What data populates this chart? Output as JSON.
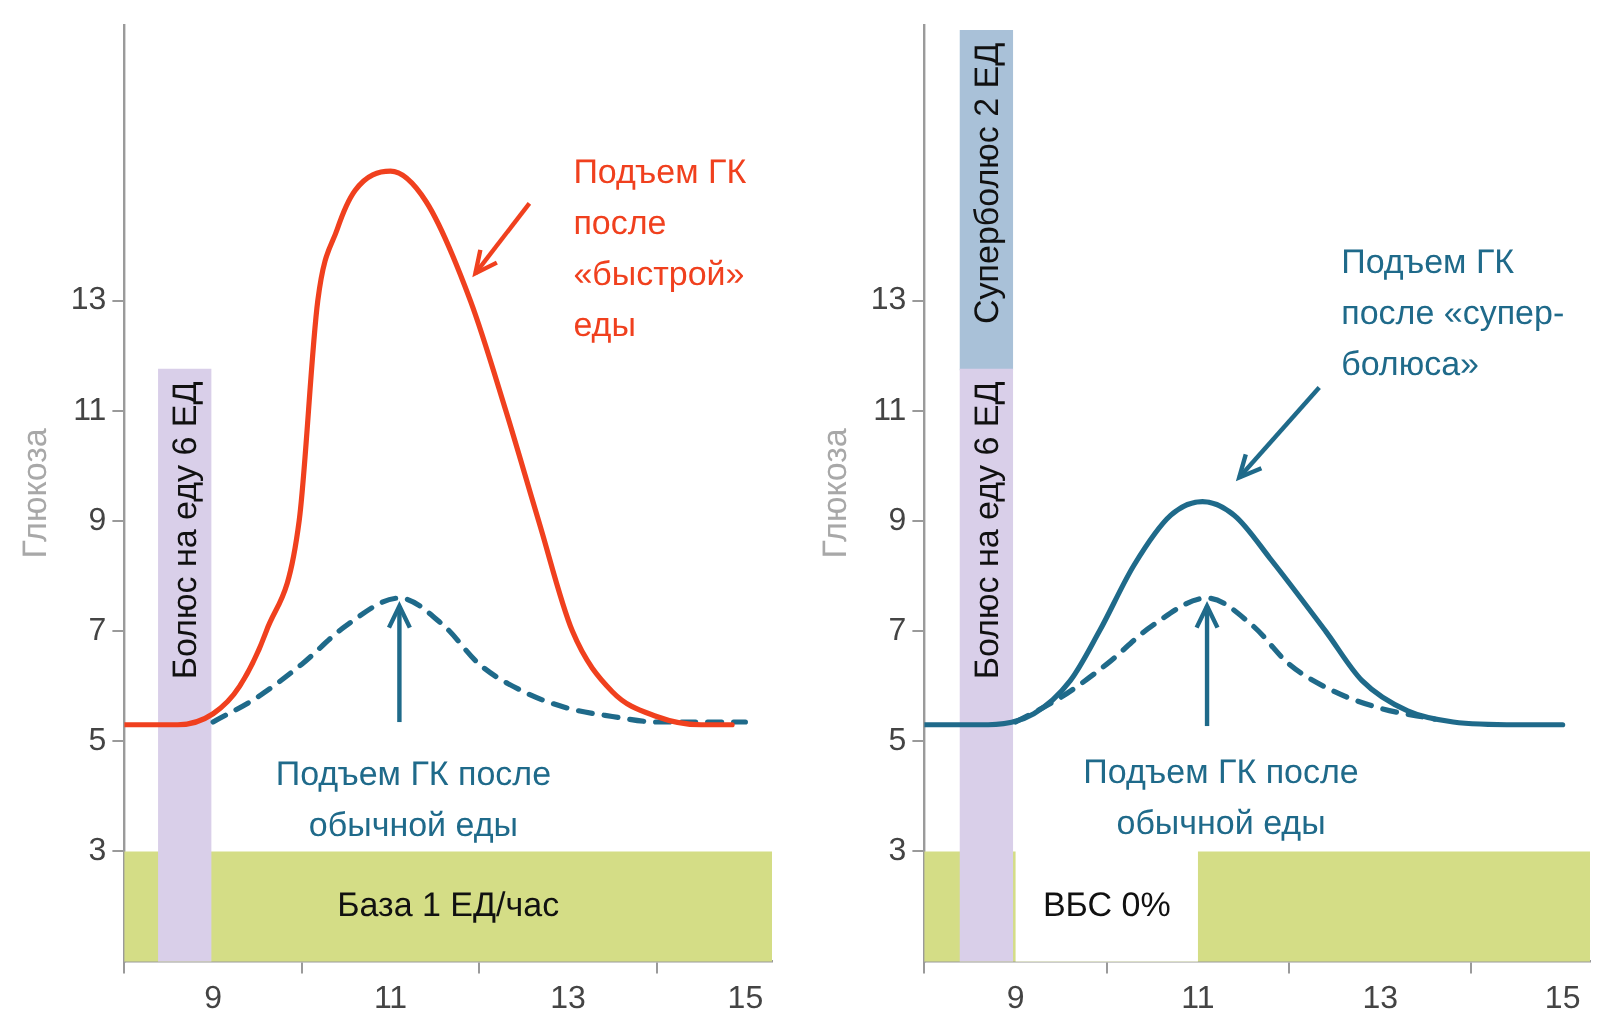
{
  "chart_data": [
    {
      "type": "line",
      "xlim": [
        8,
        15.3
      ],
      "ylim": [
        1,
        18
      ],
      "xticks": [
        9,
        11,
        13,
        15
      ],
      "yticks": [
        3,
        5,
        7,
        9,
        11,
        13
      ],
      "ylabel": "Глюкоза",
      "grid": false,
      "legend": false,
      "marker": "none",
      "bands": [
        {
          "axis": "y",
          "from": 1,
          "to": 3,
          "label": "База 1 ЕД/час",
          "color": "#d4dd86"
        }
      ],
      "series": [
        {
          "color": "#f0401e",
          "line_style": "solid",
          "x": [
            8,
            8.6,
            9,
            9.3,
            9.6,
            9.97,
            10.18,
            10.4,
            10.6,
            11,
            11.4,
            11.9,
            12.3,
            12.67,
            13.05,
            13.5,
            14,
            14.5,
            14.85
          ],
          "values": [
            5.3,
            5.3,
            5.5,
            6,
            7,
            9,
            13,
            14.3,
            15,
            15.35,
            14.8,
            13,
            11,
            9,
            7,
            5.9,
            5.45,
            5.3,
            5.3
          ]
        },
        {
          "color": "#1f6a8a",
          "line_style": "dashed",
          "x": [
            9,
            9.5,
            10,
            10.5,
            11.1,
            11.6,
            12,
            12.5,
            13,
            13.5,
            14,
            15
          ],
          "values": [
            5.35,
            5.8,
            6.4,
            7.1,
            7.6,
            7.1,
            6.4,
            5.9,
            5.6,
            5.45,
            5.35,
            5.35
          ]
        },
        {
          "type": "bar",
          "name": "Болюс на еду 6 ЕД",
          "color": "#d9cfe9",
          "x": [
            8.68
          ],
          "base": [
            1
          ],
          "values": [
            10.75
          ]
        }
      ],
      "annotations": [
        "Подъем ГК\nпосле\n«быстрой»\nеды",
        {
          "text": "Подъем ГК после\nобычной еды",
          "x": 11.1,
          "y": 7.6
        }
      ]
    },
    {
      "type": "line",
      "xlim": [
        8,
        15.3
      ],
      "ylim": [
        1,
        18
      ],
      "xticks": [
        9,
        11,
        13,
        15
      ],
      "yticks": [
        3,
        5,
        7,
        9,
        11,
        13
      ],
      "ylabel": "Глюкоза",
      "grid": false,
      "legend": false,
      "marker": "none",
      "bands": [
        {
          "axis": "y",
          "from": 1,
          "to": 3,
          "label": null,
          "color": "#d4dd86"
        }
      ],
      "series": [
        {
          "color": "#1f6a8a",
          "line_style": "solid",
          "x": [
            8,
            8.7,
            9.2,
            9.6,
            9.92,
            10.3,
            10.7,
            11.05,
            11.4,
            11.8,
            12.4,
            12.8,
            13.3,
            13.8,
            14.5,
            15
          ],
          "values": [
            5.3,
            5.3,
            5.5,
            6.1,
            7,
            8.2,
            9.1,
            9.35,
            9.1,
            8.3,
            7,
            6.1,
            5.55,
            5.35,
            5.3,
            5.3
          ]
        },
        {
          "color": "#1f6a8a",
          "line_style": "dashed",
          "x": [
            9,
            9.5,
            10,
            10.5,
            11.1,
            11.6,
            12,
            12.5,
            13,
            13.6
          ],
          "values": [
            5.35,
            5.8,
            6.4,
            7.1,
            7.6,
            7.1,
            6.4,
            5.9,
            5.6,
            5.4
          ]
        },
        {
          "type": "bar",
          "name": "Болюс на еду 6 ЕД",
          "color": "#d9cfe9",
          "x": [
            8.68
          ],
          "base": [
            1
          ],
          "values": [
            10.75
          ]
        },
        {
          "type": "bar",
          "name": "Суперболюс 2 ЕД",
          "color": "#a9c1d8",
          "x": [
            8.68
          ],
          "base": [
            11.75
          ],
          "values": [
            6.15
          ]
        }
      ],
      "annotations": [
        "Подъем ГК\nпосле «супер-\nболюса»",
        {
          "text": "Подъем ГК после\nобычной еды",
          "x": 11.1,
          "y": 7.6
        },
        "ВБС 0%"
      ]
    }
  ]
}
